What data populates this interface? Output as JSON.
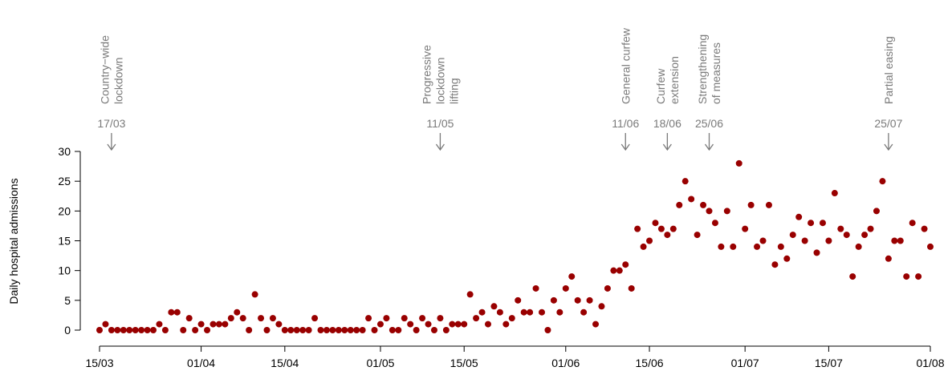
{
  "chart_data": {
    "type": "scatter",
    "y_label": "Daily hospital admissions",
    "color": "#990000",
    "x": [
      "15/03",
      "16/03",
      "17/03",
      "18/03",
      "19/03",
      "20/03",
      "21/03",
      "22/03",
      "23/03",
      "24/03",
      "25/03",
      "26/03",
      "27/03",
      "28/03",
      "29/03",
      "30/03",
      "31/03",
      "01/04",
      "02/04",
      "03/04",
      "04/04",
      "05/04",
      "06/04",
      "07/04",
      "08/04",
      "09/04",
      "10/04",
      "11/04",
      "12/04",
      "13/04",
      "14/04",
      "15/04",
      "16/04",
      "17/04",
      "18/04",
      "19/04",
      "20/04",
      "21/04",
      "22/04",
      "23/04",
      "24/04",
      "25/04",
      "26/04",
      "27/04",
      "28/04",
      "29/04",
      "30/04",
      "01/05",
      "02/05",
      "03/05",
      "04/05",
      "05/05",
      "06/05",
      "07/05",
      "08/05",
      "09/05",
      "10/05",
      "11/05",
      "12/05",
      "13/05",
      "14/05",
      "15/05",
      "16/05",
      "17/05",
      "18/05",
      "19/05",
      "20/05",
      "21/05",
      "22/05",
      "23/05",
      "24/05",
      "25/05",
      "26/05",
      "27/05",
      "28/05",
      "29/05",
      "30/05",
      "31/05",
      "01/06",
      "02/06",
      "03/06",
      "04/06",
      "05/06",
      "06/06",
      "07/06",
      "08/06",
      "09/06",
      "10/06",
      "11/06",
      "12/06",
      "13/06",
      "14/06",
      "15/06",
      "16/06",
      "17/06",
      "18/06",
      "19/06",
      "20/06",
      "21/06",
      "22/06",
      "23/06",
      "24/06",
      "25/06",
      "26/06",
      "27/06",
      "28/06",
      "29/06",
      "30/06",
      "01/07",
      "02/07",
      "03/07",
      "04/07",
      "05/07",
      "06/07",
      "07/07",
      "08/07",
      "09/07",
      "10/07",
      "11/07",
      "12/07",
      "13/07",
      "14/07",
      "15/07",
      "16/07",
      "17/07",
      "18/07",
      "19/07",
      "20/07",
      "21/07",
      "22/07",
      "23/07",
      "24/07",
      "25/07",
      "26/07",
      "27/07",
      "28/07",
      "29/07",
      "30/07",
      "31/07",
      "01/08"
    ],
    "values": [
      0,
      1,
      0,
      0,
      0,
      0,
      0,
      0,
      0,
      0,
      1,
      0,
      3,
      3,
      0,
      2,
      0,
      1,
      0,
      1,
      1,
      1,
      2,
      3,
      2,
      0,
      6,
      2,
      0,
      2,
      1,
      0,
      0,
      0,
      0,
      0,
      2,
      0,
      0,
      0,
      0,
      0,
      0,
      0,
      0,
      2,
      0,
      1,
      2,
      0,
      0,
      2,
      1,
      0,
      2,
      1,
      0,
      2,
      0,
      1,
      1,
      1,
      6,
      2,
      3,
      1,
      4,
      3,
      1,
      2,
      5,
      3,
      3,
      7,
      3,
      0,
      5,
      3,
      7,
      9,
      5,
      3,
      5,
      1,
      4,
      7,
      10,
      10,
      11,
      7,
      17,
      14,
      15,
      18,
      17,
      16,
      17,
      21,
      25,
      22,
      16,
      21,
      20,
      18,
      14,
      20,
      14,
      28,
      17,
      21,
      14,
      15,
      21,
      11,
      14,
      12,
      16,
      19,
      15,
      18,
      13,
      18,
      15,
      23,
      17,
      16,
      9,
      14,
      16,
      17,
      20,
      25,
      12,
      15,
      15,
      9,
      18,
      9,
      17,
      14
    ],
    "xticks": [
      "15/03",
      "01/04",
      "15/04",
      "01/05",
      "15/05",
      "01/06",
      "15/06",
      "01/07",
      "15/07",
      "01/08"
    ],
    "ylim": [
      0,
      30
    ],
    "yticks": [
      0,
      5,
      10,
      15,
      20,
      25,
      30
    ],
    "annotations": [
      {
        "lines": [
          "Country−wide",
          "lockdown"
        ],
        "date": "17/03"
      },
      {
        "lines": [
          "Progressive",
          "lockdown",
          "lifting"
        ],
        "date": "11/05"
      },
      {
        "lines": [
          "General curfew"
        ],
        "date": "11/06"
      },
      {
        "lines": [
          "Curfew",
          "extension"
        ],
        "date": "18/06"
      },
      {
        "lines": [
          "Strengthening",
          "of measures"
        ],
        "date": "25/06"
      },
      {
        "lines": [
          "Partial easing"
        ],
        "date": "25/07"
      }
    ]
  }
}
